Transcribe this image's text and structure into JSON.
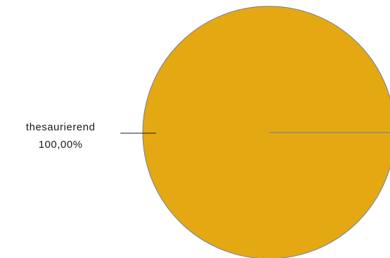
{
  "chart_data": {
    "type": "pie",
    "title": "",
    "slices": [
      {
        "label": "thesaurierend",
        "value": 100,
        "percent_label": "100,00%",
        "color": "#E4A812"
      }
    ],
    "slice_border_color": "#6E7FA3",
    "leader_line_color": "#1a1a1a",
    "legend": "none"
  }
}
